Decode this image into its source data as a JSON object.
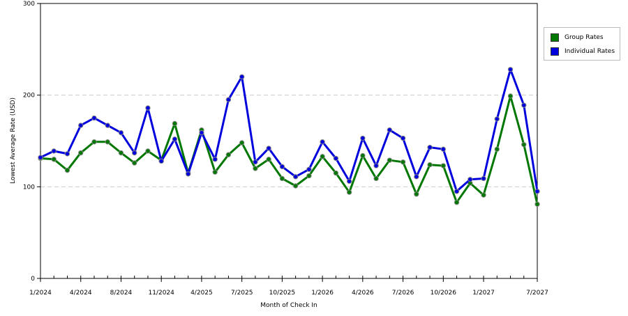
{
  "chart_data": {
    "type": "line",
    "title": "",
    "xlabel": "Month of Check In",
    "ylabel": "Lowest Average Rate (USD)",
    "ylim": [
      0,
      300
    ],
    "yticks": [
      "0",
      "100",
      "200",
      "300"
    ],
    "xtick_labels": [
      {
        "label": "1/2024",
        "index": 0
      },
      {
        "label": "4/2024",
        "index": 3
      },
      {
        "label": "8/2024",
        "index": 6
      },
      {
        "label": "11/2024",
        "index": 9
      },
      {
        "label": "4/2025",
        "index": 12
      },
      {
        "label": "7/2025",
        "index": 15
      },
      {
        "label": "10/2025",
        "index": 18
      },
      {
        "label": "1/2026",
        "index": 21
      },
      {
        "label": "4/2026",
        "index": 24
      },
      {
        "label": "7/2026",
        "index": 27
      },
      {
        "label": "10/2026",
        "index": 30
      },
      {
        "label": "1/2027",
        "index": 33
      },
      {
        "label": "7/2027",
        "index": 37
      }
    ],
    "grid": true,
    "legend_position": "right",
    "series": [
      {
        "name": "Group Rates",
        "color": "#007700",
        "values": [
          131,
          130,
          118,
          137,
          149,
          149,
          137,
          126,
          139,
          129,
          169,
          115,
          162,
          116,
          135,
          148,
          120,
          130,
          109,
          101,
          112,
          133,
          115,
          94,
          134,
          109,
          129,
          127,
          92,
          124,
          123,
          83,
          104,
          91,
          141,
          199,
          146,
          81
        ]
      },
      {
        "name": "Individual Rates",
        "color": "#0000dd",
        "values": [
          132,
          139,
          136,
          167,
          175,
          167,
          159,
          137,
          186,
          128,
          152,
          114,
          159,
          130,
          195,
          220,
          127,
          142,
          122,
          111,
          119,
          149,
          131,
          106,
          153,
          123,
          162,
          153,
          111,
          143,
          141,
          95,
          108,
          109,
          174,
          228,
          189,
          95
        ]
      }
    ]
  }
}
